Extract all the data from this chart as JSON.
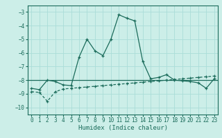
{
  "xlabel": "Humidex (Indice chaleur)",
  "bg_color": "#cceee8",
  "grid_color": "#aaddd8",
  "line_color": "#1a6b5a",
  "xlim": [
    -0.5,
    23.5
  ],
  "ylim": [
    -10.5,
    -2.5
  ],
  "yticks": [
    -10,
    -9,
    -8,
    -7,
    -6,
    -5,
    -4,
    -3
  ],
  "xticks": [
    0,
    1,
    2,
    3,
    4,
    5,
    6,
    7,
    8,
    9,
    10,
    11,
    12,
    13,
    14,
    15,
    16,
    17,
    18,
    19,
    20,
    21,
    22,
    23
  ],
  "line1_x": [
    0,
    1,
    2,
    3,
    4,
    5,
    6,
    7,
    8,
    9,
    10,
    11,
    12,
    13,
    14,
    15,
    16,
    17,
    18,
    19,
    20,
    21,
    22,
    23
  ],
  "line1_y": [
    -8.6,
    -8.7,
    -8.0,
    -8.1,
    -8.35,
    -8.4,
    -6.3,
    -5.0,
    -5.85,
    -6.2,
    -5.0,
    -3.2,
    -3.45,
    -3.65,
    -6.6,
    -7.9,
    -7.8,
    -7.6,
    -8.0,
    -8.05,
    -8.1,
    -8.2,
    -8.6,
    -7.9
  ],
  "line2_x": [
    0,
    1,
    2,
    3,
    4,
    5,
    6,
    7,
    8,
    9,
    10,
    11,
    12,
    13,
    14,
    15,
    16,
    17,
    18,
    19,
    20,
    21,
    22,
    23
  ],
  "line2_y": [
    -8.85,
    -8.9,
    -9.55,
    -8.85,
    -8.65,
    -8.6,
    -8.55,
    -8.5,
    -8.45,
    -8.4,
    -8.35,
    -8.3,
    -8.25,
    -8.2,
    -8.15,
    -8.1,
    -8.05,
    -8.0,
    -7.95,
    -7.9,
    -7.85,
    -7.8,
    -7.75,
    -7.7
  ],
  "hline_y": -8.0,
  "xlabel_fontsize": 6.5,
  "tick_fontsize": 5.5
}
